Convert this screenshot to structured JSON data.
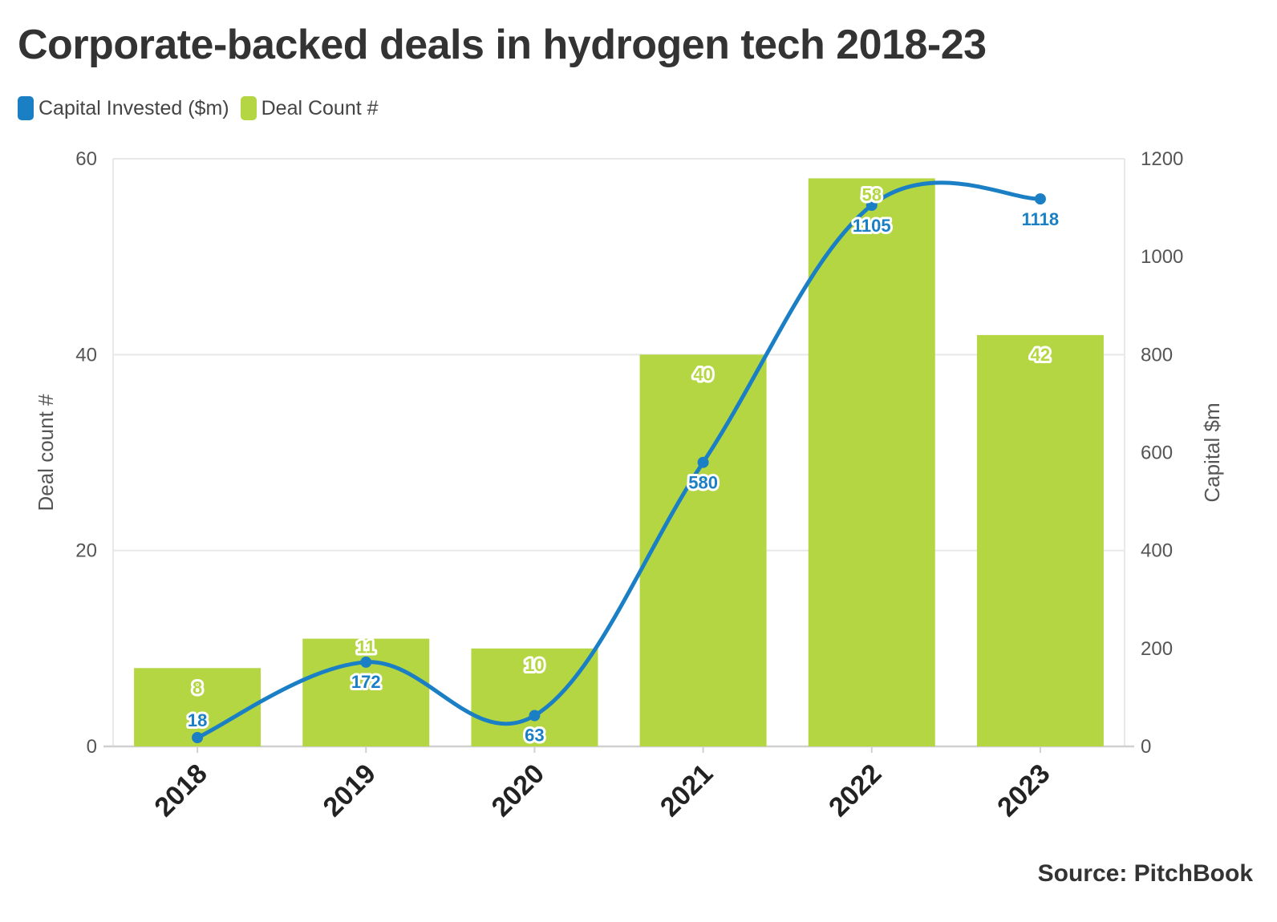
{
  "title": "Corporate-backed deals in hydrogen tech 2018-23",
  "source": "Source: PitchBook",
  "colors": {
    "line": "#1a7fc4",
    "bar": "#b5d643",
    "grid": "#e8e8e8",
    "axis": "#d0d0d0"
  },
  "chart_data": {
    "type": "bar",
    "categories": [
      "2018",
      "2019",
      "2020",
      "2021",
      "2022",
      "2023"
    ],
    "series": [
      {
        "name": "Deal Count #",
        "type": "bar",
        "axis": "left",
        "color": "#b5d643",
        "values": [
          8,
          11,
          10,
          40,
          58,
          42
        ]
      },
      {
        "name": "Capital Invested ($m)",
        "type": "line",
        "axis": "right",
        "color": "#1a7fc4",
        "values": [
          18,
          172,
          63,
          580,
          1105,
          1118
        ]
      }
    ],
    "ylabel": "Deal count #",
    "ylim": [
      0,
      60
    ],
    "yticks": [
      "0",
      "20",
      "40",
      "60"
    ],
    "y2label": "Capital $m",
    "y2lim": [
      0,
      1200
    ],
    "y2ticks": [
      "0",
      "200",
      "400",
      "600",
      "800",
      "1000",
      "1200"
    ],
    "legend": "top-left",
    "grid": true
  }
}
